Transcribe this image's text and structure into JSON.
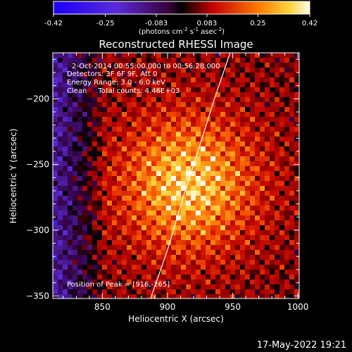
{
  "chart_data": {
    "type": "heatmap",
    "title": "Reconstructed RHESSI Image",
    "xlabel": "Heliocentric X (arcsec)",
    "ylabel": "Heliocentric Y (arcsec)",
    "xlim": [
      812,
      1001
    ],
    "ylim": [
      -352,
      -165
    ],
    "xticks": [
      850,
      900,
      950,
      1000
    ],
    "yticks": [
      -200,
      -250,
      -300,
      -350
    ],
    "colorbar": {
      "min": -0.42,
      "max": 0.42,
      "ticks": [
        "-0.42",
        "-0.25",
        "-0.083",
        "0.083",
        "0.25",
        "0.42"
      ],
      "unit_main": "(photons cm",
      "unit_exp1": "-2",
      "unit_mid1": " s",
      "unit_exp2": "-1",
      "unit_mid2": " asec",
      "unit_exp3": "-2",
      "unit_end": ")"
    },
    "annotations": [
      "2-Oct-2014 00:55:00.000 to 00:56:28.000",
      "Detectors: 3F 6F 9F, Att 0",
      "Energy Range: 3.0 - 6.0 keV",
      "Clean     Total counts: 4.46E+03"
    ],
    "peak_label": "Position of Peak = [916,-265]",
    "peak": {
      "x": 916,
      "y": -265,
      "value": 0.42
    },
    "limb_points": [
      [
        887,
        -352
      ],
      [
        900,
        -315
      ],
      [
        912,
        -275
      ],
      [
        924,
        -238
      ],
      [
        936,
        -200
      ],
      [
        948,
        -165
      ]
    ],
    "grid": false,
    "legend": "none"
  },
  "footer": {
    "timestamp": "17-May-2022 19:21"
  }
}
